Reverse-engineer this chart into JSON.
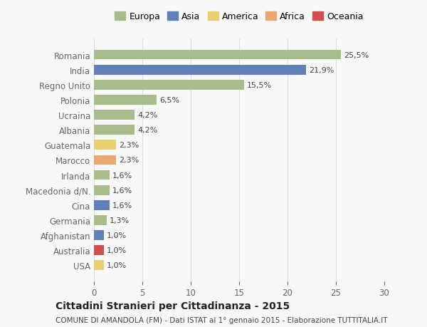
{
  "countries": [
    "Romania",
    "India",
    "Regno Unito",
    "Polonia",
    "Ucraina",
    "Albania",
    "Guatemala",
    "Marocco",
    "Irlanda",
    "Macedonia d/N.",
    "Cina",
    "Germania",
    "Afghanistan",
    "Australia",
    "USA"
  ],
  "values": [
    25.5,
    21.9,
    15.5,
    6.5,
    4.2,
    4.2,
    2.3,
    2.3,
    1.6,
    1.6,
    1.6,
    1.3,
    1.0,
    1.0,
    1.0
  ],
  "labels": [
    "25,5%",
    "21,9%",
    "15,5%",
    "6,5%",
    "4,2%",
    "4,2%",
    "2,3%",
    "2,3%",
    "1,6%",
    "1,6%",
    "1,6%",
    "1,3%",
    "1,0%",
    "1,0%",
    "1,0%"
  ],
  "continents": [
    "Europa",
    "Asia",
    "Europa",
    "Europa",
    "Europa",
    "Europa",
    "America",
    "Africa",
    "Europa",
    "Europa",
    "Asia",
    "Europa",
    "Asia",
    "Oceania",
    "America"
  ],
  "continent_colors": {
    "Europa": "#a8bb8a",
    "Asia": "#6080b8",
    "America": "#e8d070",
    "Africa": "#e8a870",
    "Oceania": "#d05050"
  },
  "legend_order": [
    "Europa",
    "Asia",
    "America",
    "Africa",
    "Oceania"
  ],
  "background_color": "#f8f8f8",
  "grid_color": "#dddddd",
  "title": "Cittadini Stranieri per Cittadinanza - 2015",
  "subtitle": "COMUNE DI AMANDOLA (FM) - Dati ISTAT al 1° gennaio 2015 - Elaborazione TUTTITALIA.IT",
  "xlim": [
    0,
    30
  ],
  "xticks": [
    0,
    5,
    10,
    15,
    20,
    25,
    30
  ]
}
